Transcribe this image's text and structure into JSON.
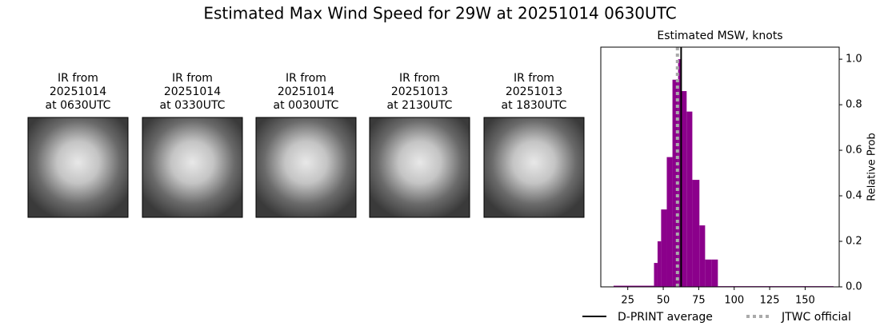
{
  "title": "Estimated Max Wind Speed for 29W at 20251014 0630UTC",
  "panels": [
    {
      "title": [
        "IR from",
        "20251014",
        "at 0630UTC"
      ]
    },
    {
      "title": [
        "IR from",
        "20251014",
        "at 0330UTC"
      ]
    },
    {
      "title": [
        "IR from",
        "20251014",
        "at 0030UTC"
      ]
    },
    {
      "title": [
        "IR from",
        "20251013",
        "at 2130UTC"
      ]
    },
    {
      "title": [
        "IR from",
        "20251013",
        "at 1830UTC"
      ]
    }
  ],
  "chart_data": {
    "type": "histogram",
    "title": "Estimated MSW, knots",
    "y_label": "Relative Prob",
    "bins": [
      15,
      43.5,
      46,
      48.5,
      52.5,
      56.5,
      60.5,
      62.5,
      66.5,
      70.5,
      75.5,
      79.5,
      84,
      88.5,
      170
    ],
    "counts": [
      0.005,
      0.105,
      0.2,
      0.34,
      0.57,
      0.91,
      1.0,
      0.86,
      0.77,
      0.47,
      0.27,
      0.12,
      0.12,
      0.003
    ],
    "color": "#8b008b",
    "xlim": [
      6,
      174
    ],
    "ylim": [
      0,
      1.053
    ],
    "xticks": [
      25,
      50,
      75,
      100,
      125,
      150
    ],
    "yticks": [
      {
        "value": 0,
        "label": "0.0"
      },
      {
        "value": 0.2,
        "label": "0.2"
      },
      {
        "value": 0.4,
        "label": "0.4"
      },
      {
        "value": 0.6,
        "label": "0.6"
      },
      {
        "value": 0.8,
        "label": "0.8"
      },
      {
        "value": 1.0,
        "label": "1.0"
      }
    ],
    "lines": [
      {
        "name": "D-PRINT average",
        "x": 62.6,
        "color": "#000000",
        "style": "solid"
      },
      {
        "name": "JTWC official",
        "x": 60,
        "color": "#aaaaaa",
        "style": "dotted"
      }
    ]
  }
}
